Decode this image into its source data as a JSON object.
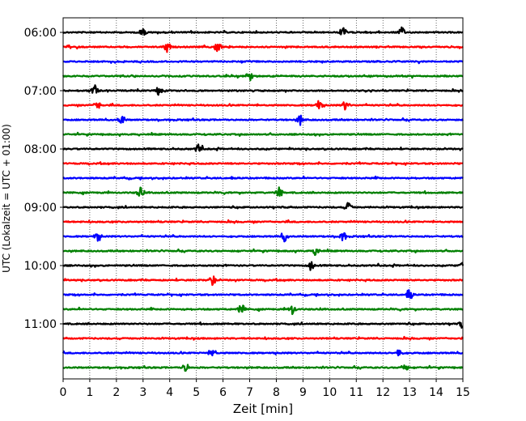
{
  "chart_data": {
    "type": "line",
    "title": "",
    "xlabel": "Zeit  [min]",
    "ylabel": "UTC (Lokalzeit = UTC + 01:00)",
    "xlim": [
      0,
      15
    ],
    "x_ticks": [
      "0",
      "1",
      "2",
      "3",
      "4",
      "5",
      "6",
      "7",
      "8",
      "9",
      "10",
      "11",
      "12",
      "13",
      "14",
      "15"
    ],
    "y_ticks": [
      "06:00",
      "07:00",
      "08:00",
      "09:00",
      "10:00",
      "11:00"
    ],
    "grid": "vertical dotted lines at each minute",
    "legend": "none",
    "trace_interval_min": 15,
    "trace_color_cycle": [
      "#000000",
      "#ff0000",
      "#0000ff",
      "#008000"
    ],
    "traces": [
      {
        "start": "06:00",
        "events": [
          3.0,
          10.5,
          12.7
        ]
      },
      {
        "start": "06:15",
        "events": [
          3.9,
          5.8
        ]
      },
      {
        "start": "06:30",
        "events": []
      },
      {
        "start": "06:45",
        "events": [
          7.0
        ]
      },
      {
        "start": "07:00",
        "events": [
          1.2,
          3.6
        ]
      },
      {
        "start": "07:15",
        "events": [
          1.3,
          9.6,
          10.6
        ]
      },
      {
        "start": "07:30",
        "events": [
          2.2,
          8.9
        ]
      },
      {
        "start": "07:45",
        "events": []
      },
      {
        "start": "08:00",
        "events": [
          5.1
        ]
      },
      {
        "start": "08:15",
        "events": []
      },
      {
        "start": "08:30",
        "events": []
      },
      {
        "start": "08:45",
        "events": [
          2.9,
          8.1
        ]
      },
      {
        "start": "09:00",
        "events": [
          10.7
        ]
      },
      {
        "start": "09:15",
        "events": []
      },
      {
        "start": "09:30",
        "events": [
          1.3,
          8.3,
          10.5
        ]
      },
      {
        "start": "09:45",
        "events": [
          9.5
        ]
      },
      {
        "start": "10:00",
        "events": [
          9.3,
          15.0
        ]
      },
      {
        "start": "10:15",
        "events": [
          5.6
        ]
      },
      {
        "start": "10:30",
        "events": [
          13.0
        ]
      },
      {
        "start": "10:45",
        "events": [
          6.7,
          8.6
        ]
      },
      {
        "start": "11:00",
        "events": [
          15.0
        ]
      },
      {
        "start": "11:15",
        "events": []
      },
      {
        "start": "11:30",
        "events": [
          5.6,
          12.6
        ]
      },
      {
        "start": "11:45",
        "events": [
          4.6,
          12.8
        ]
      }
    ]
  }
}
